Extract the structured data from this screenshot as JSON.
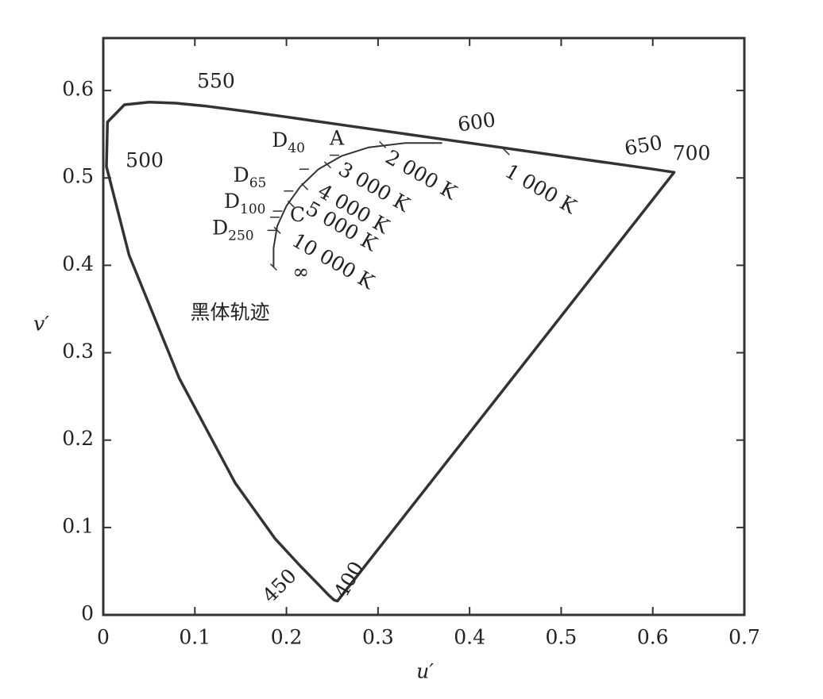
{
  "chart_data": {
    "type": "chromaticity",
    "xlabel": "u′",
    "ylabel": "v′",
    "xlim": [
      0,
      0.7
    ],
    "ylim": [
      0,
      0.66
    ],
    "xticks": [
      0,
      0.1,
      0.2,
      0.3,
      0.4,
      0.5,
      0.6,
      0.7
    ],
    "yticks": [
      0,
      0.1,
      0.2,
      0.3,
      0.4,
      0.5,
      0.6
    ],
    "spectral_locus": {
      "u": [
        0.2557,
        0.2522,
        0.2461,
        0.2347,
        0.2161,
        0.1877,
        0.144,
        0.0828,
        0.0282,
        0.0035,
        0.0046,
        0.0231,
        0.0501,
        0.0792,
        0.1127,
        0.1531,
        0.2026,
        0.2623,
        0.3315,
        0.4035,
        0.5202,
        0.6005,
        0.6233
      ],
      "v": [
        0.0159,
        0.0169,
        0.0226,
        0.035,
        0.0549,
        0.0871,
        0.151,
        0.271,
        0.4117,
        0.513,
        0.5639,
        0.5837,
        0.5867,
        0.5856,
        0.5821,
        0.5766,
        0.5694,
        0.5604,
        0.5501,
        0.5394,
        0.5219,
        0.51,
        0.5064
      ]
    },
    "wavelength_labels": [
      {
        "text": "400",
        "u": 0.2557,
        "v": 0.0159
      },
      {
        "text": "450",
        "u": 0.2161,
        "v": 0.0549
      },
      {
        "text": "500",
        "u": 0.0035,
        "v": 0.513
      },
      {
        "text": "550",
        "u": 0.1127,
        "v": 0.5821
      },
      {
        "text": "600",
        "u": 0.4035,
        "v": 0.5394
      },
      {
        "text": "650",
        "u": 0.6005,
        "v": 0.51
      },
      {
        "text": "700",
        "u": 0.6233,
        "v": 0.5064
      }
    ],
    "planckian_locus": {
      "u": [
        0.186,
        0.186,
        0.19,
        0.2,
        0.215,
        0.235,
        0.26,
        0.29,
        0.33,
        0.37
      ],
      "v": [
        0.398,
        0.42,
        0.445,
        0.468,
        0.49,
        0.51,
        0.525,
        0.535,
        0.54,
        0.54
      ]
    },
    "planckian_label": "黑体轨迹",
    "temperatures": [
      {
        "label": "1 000 K",
        "u": 0.44,
        "v": 0.53
      },
      {
        "label": "2 000 K",
        "u": 0.305,
        "v": 0.538
      },
      {
        "label": "3 000 K",
        "u": 0.245,
        "v": 0.515
      },
      {
        "label": "4 000 K",
        "u": 0.22,
        "v": 0.49
      },
      {
        "label": "5 000 K",
        "u": 0.205,
        "v": 0.47
      },
      {
        "label": "10 000 K",
        "u": 0.19,
        "v": 0.44
      },
      {
        "label": "∞",
        "u": 0.186,
        "v": 0.398
      }
    ],
    "illuminants": [
      {
        "name": "D",
        "sub": "40",
        "u": 0.222,
        "v": 0.51
      },
      {
        "name": "A",
        "u": 0.255,
        "v": 0.526
      },
      {
        "name": "D",
        "sub": "65",
        "u": 0.205,
        "v": 0.485
      },
      {
        "name": "D",
        "sub": "100",
        "u": 0.193,
        "v": 0.462
      },
      {
        "name": "C",
        "u": 0.19,
        "v": 0.455
      },
      {
        "name": "D",
        "sub": "250",
        "u": 0.187,
        "v": 0.44
      }
    ]
  }
}
